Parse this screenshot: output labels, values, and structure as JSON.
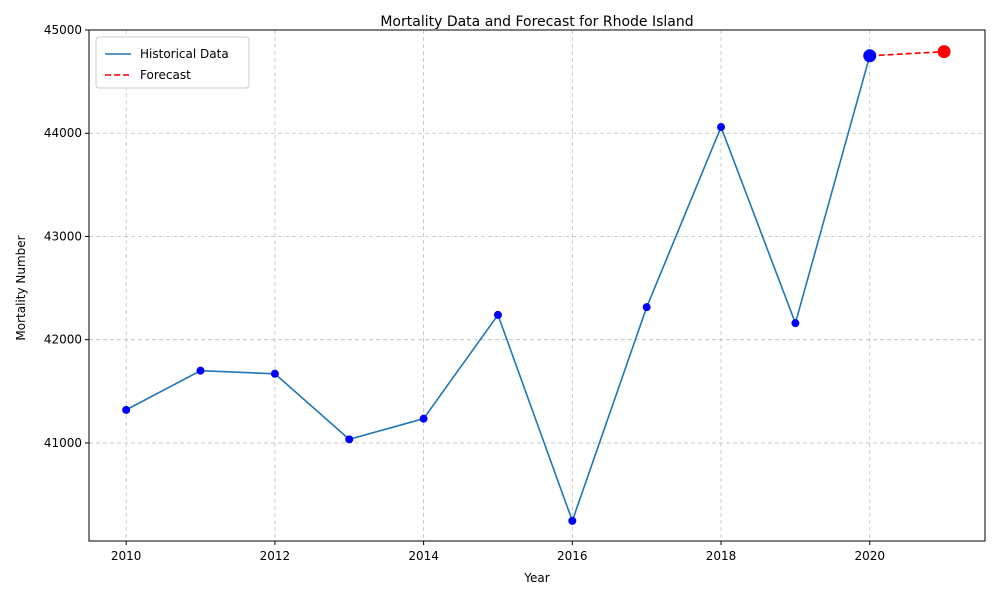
{
  "chart_data": {
    "type": "line",
    "title": "Mortality Data and Forecast for Rhode Island",
    "xlabel": "Year",
    "ylabel": "Mortality Number",
    "xlim": [
      2009.5,
      2021.55
    ],
    "ylim": [
      40050,
      45000
    ],
    "x_ticks": [
      2010,
      2012,
      2014,
      2016,
      2018,
      2020
    ],
    "y_ticks": [
      41000,
      42000,
      43000,
      44000,
      45000
    ],
    "grid": true,
    "legend_position": "top-left",
    "series": [
      {
        "name": "Historical Data",
        "style": "solid",
        "color": "#1f77b4",
        "marker_color": "#0000ff",
        "x": [
          2010,
          2011,
          2012,
          2013,
          2014,
          2015,
          2016,
          2017,
          2018,
          2019,
          2020
        ],
        "values": [
          41320,
          41700,
          41670,
          41035,
          41235,
          42240,
          40245,
          42315,
          44060,
          42160,
          44750
        ]
      },
      {
        "name": "Forecast",
        "style": "dashed",
        "color": "#ff0000",
        "marker_color": "#ff0000",
        "x": [
          2020,
          2021
        ],
        "values": [
          44750,
          44790
        ]
      }
    ]
  }
}
